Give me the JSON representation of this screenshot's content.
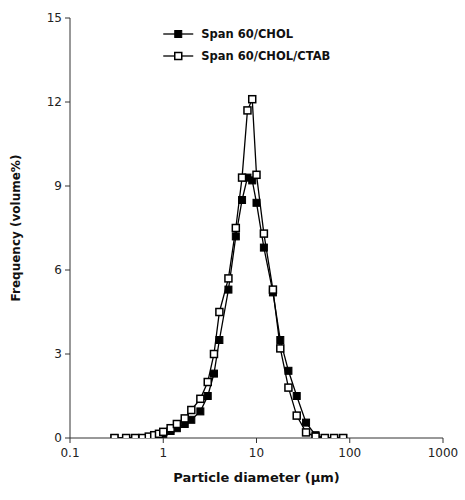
{
  "chart_data": {
    "type": "line",
    "xlabel": "Particle diameter (μm)",
    "ylabel": "Frequency (volume%)",
    "x": [
      0.3,
      0.4,
      0.5,
      0.6,
      0.7,
      0.8,
      0.9,
      1.0,
      1.2,
      1.4,
      1.7,
      2.0,
      2.5,
      3.0,
      3.5,
      4.0,
      5.0,
      6.0,
      7.0,
      8.0,
      9.0,
      10.0,
      12.0,
      15.0,
      18.0,
      22.0,
      27.0,
      34.0,
      43.0,
      54.0,
      68.0,
      85.0
    ],
    "series": [
      {
        "name": "Span 60/CHOL",
        "color": "#000000",
        "marker": "square",
        "values": [
          0.0,
          0.0,
          0.0,
          0.0,
          0.0,
          0.05,
          0.1,
          0.15,
          0.25,
          0.35,
          0.5,
          0.65,
          0.95,
          1.5,
          2.3,
          3.5,
          5.3,
          7.2,
          8.5,
          9.3,
          9.2,
          8.4,
          6.8,
          5.2,
          3.5,
          2.4,
          1.5,
          0.55,
          0.1,
          0.0,
          0.0,
          0.0
        ]
      },
      {
        "name": "Span 60/CHOL/CTAB",
        "color": "#000000",
        "marker": "square-open",
        "values": [
          0.0,
          0.0,
          0.0,
          0.0,
          0.05,
          0.1,
          0.15,
          0.22,
          0.35,
          0.5,
          0.7,
          1.0,
          1.4,
          2.0,
          3.0,
          4.5,
          5.7,
          7.5,
          9.3,
          11.7,
          12.1,
          9.4,
          7.3,
          5.3,
          3.2,
          1.8,
          0.8,
          0.2,
          0.05,
          0.0,
          0.0,
          0.0
        ]
      }
    ],
    "log": "x",
    "xlim": [
      0.1,
      1000
    ],
    "xticks": [
      0.1,
      1,
      10,
      100,
      1000
    ],
    "ylim": [
      0,
      15
    ],
    "yticks": [
      0,
      3,
      6,
      9,
      12,
      15
    ],
    "grid": false,
    "legend": "upper left"
  }
}
